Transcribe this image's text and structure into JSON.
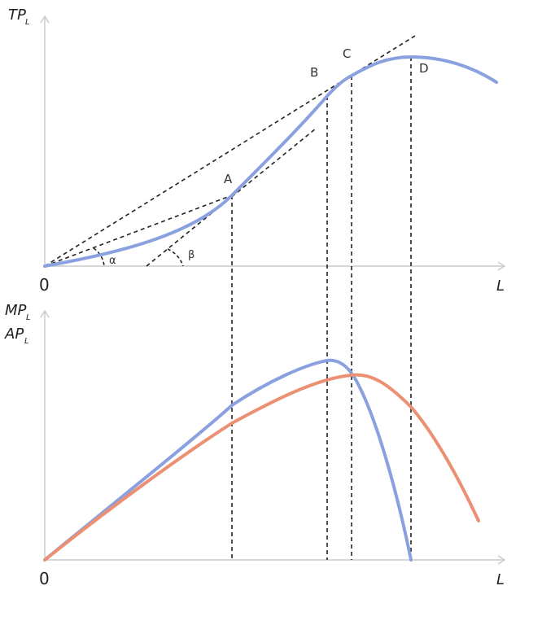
{
  "top_panel": {
    "y_label_main": "TP",
    "y_label_sub": "L",
    "x_label": "L",
    "origin": "0",
    "points": {
      "A": "A",
      "B": "B",
      "C": "C",
      "D": "D"
    },
    "angles": {
      "alpha": "α",
      "beta": "β"
    }
  },
  "bottom_panel": {
    "y_label_1_main": "MP",
    "y_label_1_sub": "L",
    "y_label_2_main": "AP",
    "y_label_2_sub": "L",
    "x_label": "L",
    "origin": "0"
  },
  "colors": {
    "tp_curve": "#8aa1e0",
    "mp_curve": "#8aa1e0",
    "ap_curve": "#ec9074",
    "axis": "#c9c9c9",
    "guides": "#222222"
  }
}
